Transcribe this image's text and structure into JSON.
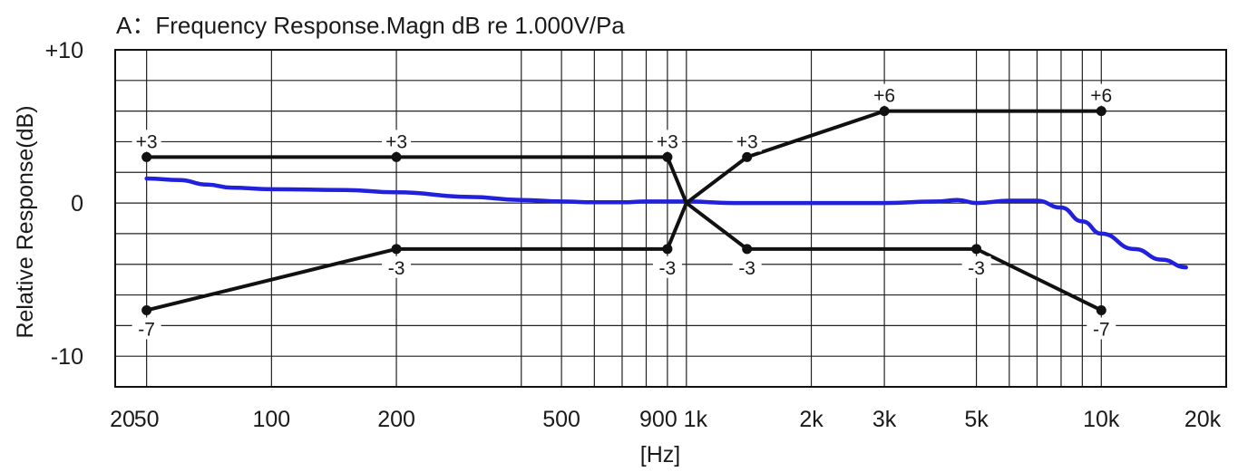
{
  "chart_data": {
    "type": "line",
    "title": "A：Frequency Response.Magn  dB re 1.000V/Pa",
    "xlabel": "[Hz]",
    "ylabel": "Relative Response(dB)",
    "xscale": "log",
    "xlim": [
      42,
      20000
    ],
    "ylim": [
      -12,
      10
    ],
    "x_ticks": [
      {
        "value": 20,
        "label": "20"
      },
      {
        "value": 50,
        "label": "50"
      },
      {
        "value": 100,
        "label": "100"
      },
      {
        "value": 200,
        "label": "200"
      },
      {
        "value": 500,
        "label": "500"
      },
      {
        "value": 900,
        "label": "900"
      },
      {
        "value": 1000,
        "label": "1k"
      },
      {
        "value": 2000,
        "label": "2k"
      },
      {
        "value": 3000,
        "label": "3k"
      },
      {
        "value": 5000,
        "label": "5k"
      },
      {
        "value": 10000,
        "label": "10k"
      },
      {
        "value": 20000,
        "label": "20k"
      }
    ],
    "y_ticks": [
      {
        "value": 10,
        "label": "+10"
      },
      {
        "value": 0,
        "label": "0"
      },
      {
        "value": -10,
        "label": "-10"
      }
    ],
    "grid": true,
    "grid_x_lines": [
      50,
      100,
      200,
      400,
      500,
      600,
      700,
      800,
      900,
      1000,
      2000,
      3000,
      5000,
      6000,
      7000,
      8000,
      9000,
      10000,
      20000
    ],
    "grid_y_lines": [
      10,
      8,
      6,
      4,
      2,
      0,
      -2,
      -4,
      -6,
      -8,
      -10,
      -12
    ],
    "colors": {
      "response": "#2020dd",
      "tolerance": "#111111",
      "grid": "#222222"
    },
    "series": [
      {
        "key": "response",
        "points": [
          [
            50,
            1.6
          ],
          [
            60,
            1.5
          ],
          [
            70,
            1.2
          ],
          [
            80,
            1.0
          ],
          [
            100,
            0.9
          ],
          [
            150,
            0.85
          ],
          [
            200,
            0.7
          ],
          [
            300,
            0.4
          ],
          [
            400,
            0.2
          ],
          [
            500,
            0.1
          ],
          [
            600,
            0.05
          ],
          [
            700,
            0.05
          ],
          [
            800,
            0.1
          ],
          [
            1000,
            0.1
          ],
          [
            1300,
            0.0
          ],
          [
            2000,
            0.0
          ],
          [
            3000,
            0.0
          ],
          [
            4000,
            0.1
          ],
          [
            4500,
            0.2
          ],
          [
            5000,
            0.0
          ],
          [
            6000,
            0.15
          ],
          [
            7000,
            0.15
          ],
          [
            8000,
            -0.3
          ],
          [
            9000,
            -1.2
          ],
          [
            10000,
            -2.0
          ],
          [
            12000,
            -3.0
          ],
          [
            14000,
            -3.7
          ],
          [
            16000,
            -4.2
          ]
        ]
      },
      {
        "key": "upper-tolerance",
        "points": [
          [
            50,
            3
          ],
          [
            200,
            3
          ],
          [
            900,
            3
          ],
          [
            1000,
            0
          ],
          [
            1400,
            3
          ],
          [
            3000,
            6
          ],
          [
            10000,
            6
          ]
        ],
        "labels": [
          "+3",
          "+3",
          "+3",
          "",
          "+3",
          "+6",
          "+6"
        ]
      },
      {
        "key": "lower-tolerance",
        "points": [
          [
            50,
            -7
          ],
          [
            200,
            -3
          ],
          [
            900,
            -3
          ],
          [
            1000,
            0
          ],
          [
            1400,
            -3
          ],
          [
            5000,
            -3
          ],
          [
            10000,
            -7
          ]
        ],
        "labels": [
          "-7",
          "-3",
          "-3",
          "",
          "-3",
          "-3",
          "-7"
        ]
      }
    ]
  }
}
